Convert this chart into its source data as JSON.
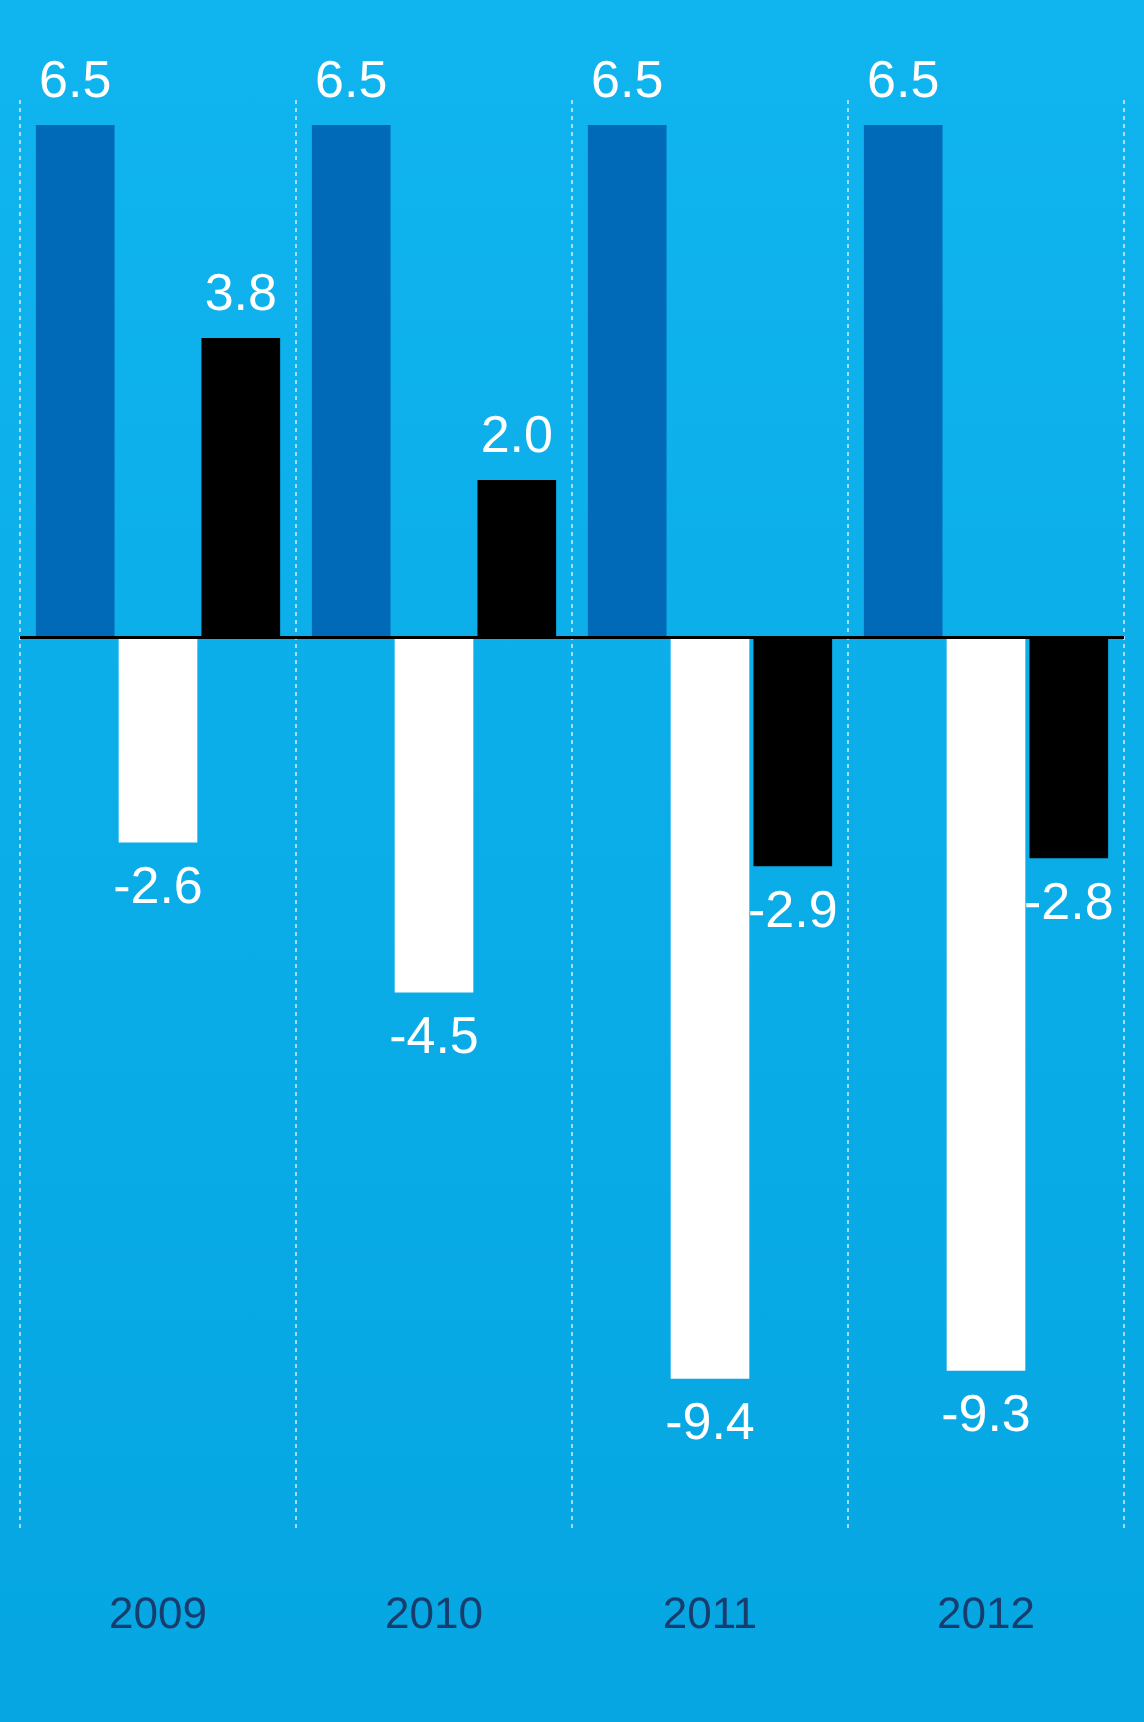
{
  "chart_data": {
    "type": "bar",
    "categories": [
      "2009",
      "2010",
      "2011",
      "2012"
    ],
    "series": [
      {
        "color": "#0069b8",
        "values": [
          6.5,
          6.5,
          6.5,
          6.5
        ],
        "value_labels": [
          "6.5",
          "6.5",
          "6.5",
          "6.5"
        ]
      },
      {
        "color": "#ffffff",
        "values": [
          -2.6,
          -4.5,
          -9.4,
          -9.3
        ],
        "value_labels": [
          "-2.6",
          "-4.5",
          "-9.4",
          "-9.3"
        ]
      },
      {
        "color": "#000000",
        "values": [
          3.8,
          2.0,
          -2.9,
          -2.8
        ],
        "value_labels": [
          "3.8",
          "2.0",
          "-2.9",
          "-2.8"
        ]
      }
    ],
    "grid": "x",
    "legend": false
  }
}
